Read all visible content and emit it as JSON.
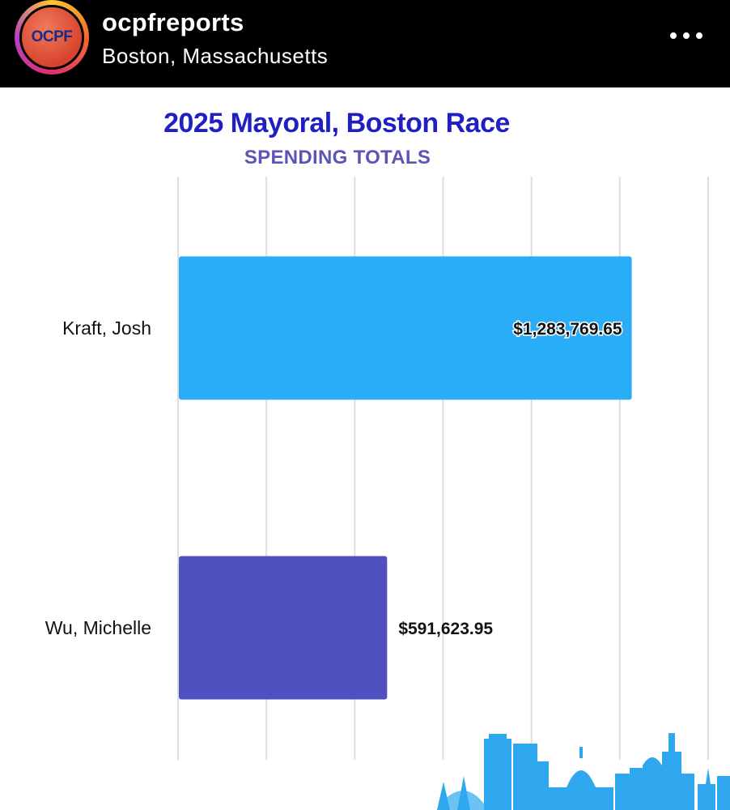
{
  "post_header": {
    "account_name": "ocpfreports",
    "location": "Boston, Massachusetts",
    "avatar_text": "OCPF",
    "avatar_icon": "ocpf-logo-icon",
    "more_icon": "more-options-icon"
  },
  "chart_data": {
    "type": "bar",
    "orientation": "horizontal",
    "title": "2025 Mayoral, Boston Race",
    "subtitle": "SPENDING TOTALS",
    "categories": [
      "Kraft, Josh",
      "Wu, Michelle"
    ],
    "values": [
      1283769.65,
      591623.95
    ],
    "value_labels": [
      "$1,283,769.65",
      "$591,623.95"
    ],
    "colors": [
      "#29adf7",
      "#5150c0"
    ],
    "xlim": [
      0,
      1500000
    ],
    "grid": true,
    "gridline_count": 7,
    "xlabel": "",
    "ylabel": ""
  },
  "decoration": {
    "skyline_icon": "boston-skyline-icon",
    "skyline_color": "#2fa8f0"
  }
}
